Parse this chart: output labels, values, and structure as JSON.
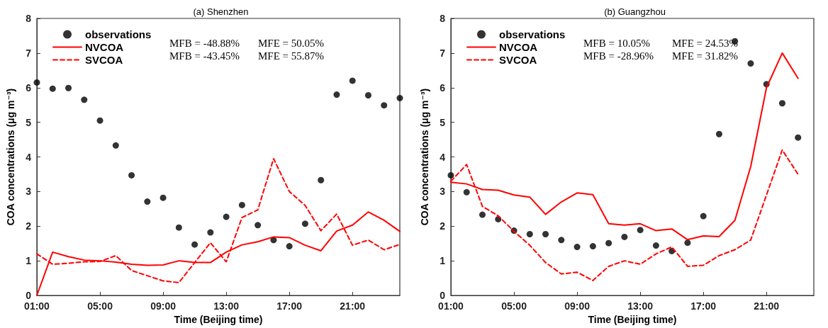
{
  "chart_data": [
    {
      "type": "line",
      "title": "(a) Shenzhen",
      "xlabel": "Time (Beijing time)",
      "ylabel": "COA concentrations (μg m⁻³)",
      "xlim": [
        1,
        24
      ],
      "xticks": [
        {
          "value": 1,
          "label": "01:00"
        },
        {
          "value": 5,
          "label": "05:00"
        },
        {
          "value": 9,
          "label": "09:00"
        },
        {
          "value": 13,
          "label": "13:00"
        },
        {
          "value": 17,
          "label": "17:00"
        },
        {
          "value": 21,
          "label": "21:00"
        }
      ],
      "ylim": [
        0,
        8
      ],
      "yticks": [
        0,
        1,
        2,
        3,
        4,
        5,
        6,
        7,
        8
      ],
      "grid": false,
      "legend": "top left",
      "x": [
        1,
        2,
        3,
        4,
        5,
        6,
        7,
        8,
        9,
        10,
        11,
        12,
        13,
        14,
        15,
        16,
        17,
        18,
        19,
        20,
        21,
        22,
        23,
        24
      ],
      "series": [
        {
          "name": "observations",
          "type": "scatter",
          "marker": "circle",
          "color": "#000000",
          "values": [
            6.15,
            5.97,
            5.99,
            5.65,
            5.05,
            4.33,
            3.47,
            2.71,
            2.82,
            1.96,
            1.47,
            1.82,
            2.27,
            2.61,
            2.03,
            1.6,
            1.42,
            2.07,
            3.33,
            5.8,
            6.2,
            5.78,
            5.49,
            5.7
          ]
        },
        {
          "name": "NVCOA",
          "marker": "none",
          "line_style": "solid",
          "color": "#ff0000",
          "values": [
            0,
            1.25,
            1.12,
            1.02,
            1.0,
            0.96,
            0.9,
            0.87,
            0.88,
            1.0,
            0.95,
            0.95,
            1.25,
            1.46,
            1.55,
            1.69,
            1.67,
            1.45,
            1.29,
            1.86,
            2.03,
            2.41,
            2.17,
            1.85
          ]
        },
        {
          "name": "SVCOA",
          "marker": "none",
          "line_style": "dashed",
          "color": "#ff0000",
          "values": [
            1.2,
            0.9,
            0.93,
            0.97,
            0.98,
            1.15,
            0.72,
            0.57,
            0.42,
            0.37,
            0.95,
            1.52,
            0.97,
            2.25,
            2.47,
            3.95,
            3.0,
            2.6,
            1.87,
            2.35,
            1.45,
            1.6,
            1.32,
            1.47
          ]
        }
      ],
      "annotations": [
        "MFB = -48.88%",
        "MFE = 50.05%",
        "MFB = -43.45%",
        "MFE = 55.87%"
      ]
    },
    {
      "type": "line",
      "title": "(b) Guangzhou",
      "xlabel": "Time (Beijing time)",
      "ylabel": "COA concentrations (μg m⁻³)",
      "xlim": [
        1,
        24
      ],
      "xticks": [
        {
          "value": 1,
          "label": "01:00"
        },
        {
          "value": 5,
          "label": "05:00"
        },
        {
          "value": 9,
          "label": "09:00"
        },
        {
          "value": 13,
          "label": "13:00"
        },
        {
          "value": 17,
          "label": "17:00"
        },
        {
          "value": 21,
          "label": "21:00"
        }
      ],
      "ylim": [
        0,
        8
      ],
      "yticks": [
        0,
        1,
        2,
        3,
        4,
        5,
        6,
        7,
        8
      ],
      "grid": false,
      "legend": "top left",
      "x": [
        1,
        2,
        3,
        4,
        5,
        6,
        7,
        8,
        9,
        10,
        11,
        12,
        13,
        14,
        15,
        16,
        17,
        18,
        19,
        20,
        21,
        22,
        23
      ],
      "series": [
        {
          "name": "observations",
          "type": "scatter",
          "marker": "circle",
          "color": "#000000",
          "values": [
            3.47,
            2.98,
            2.33,
            2.2,
            1.87,
            1.77,
            1.77,
            1.6,
            1.4,
            1.42,
            1.51,
            1.69,
            1.89,
            1.44,
            1.28,
            1.52,
            2.29,
            4.66,
            7.34,
            6.7,
            6.1,
            5.55,
            4.56
          ]
        },
        {
          "name": "NVCOA",
          "marker": "none",
          "line_style": "solid",
          "color": "#ff0000",
          "values": [
            3.27,
            3.22,
            3.06,
            3.04,
            2.9,
            2.84,
            2.34,
            2.7,
            2.96,
            2.91,
            2.07,
            2.03,
            2.07,
            1.87,
            1.92,
            1.61,
            1.72,
            1.7,
            2.17,
            3.72,
            6.0,
            7.0,
            6.27
          ]
        },
        {
          "name": "SVCOA",
          "marker": "none",
          "line_style": "dashed",
          "color": "#ff0000",
          "values": [
            3.3,
            3.78,
            2.57,
            2.3,
            1.85,
            1.45,
            0.95,
            0.62,
            0.67,
            0.43,
            0.84,
            1.0,
            0.9,
            1.2,
            1.4,
            0.84,
            0.87,
            1.15,
            1.32,
            1.6,
            2.9,
            4.2,
            3.5
          ]
        }
      ],
      "annotations": [
        "MFB = 10.05%",
        "MFE = 24.53%",
        "MFB = -28.96%",
        "MFE = 31.82%"
      ]
    }
  ]
}
